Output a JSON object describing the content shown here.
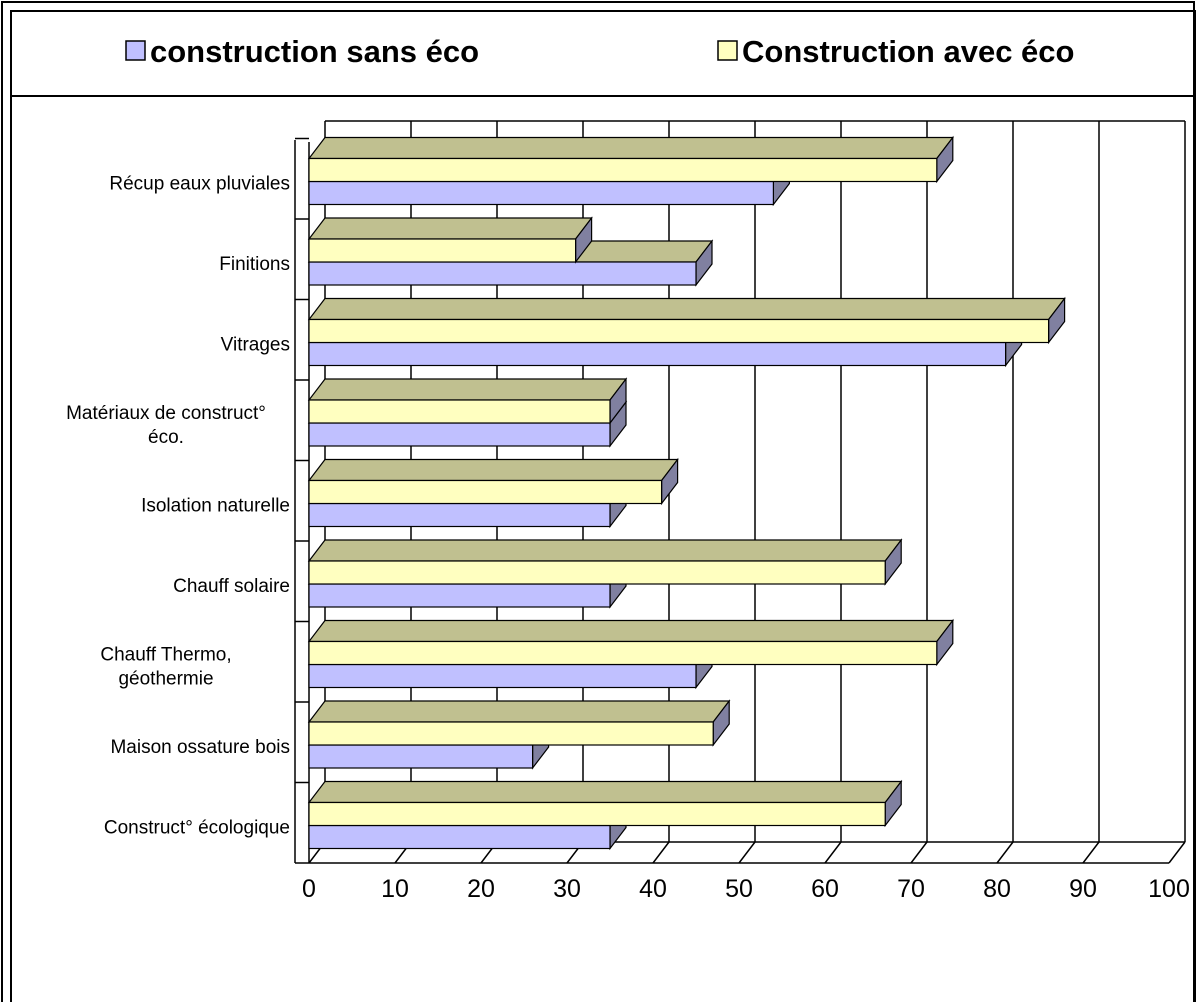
{
  "chart_data": {
    "type": "bar",
    "orientation": "horizontal",
    "style": "3d",
    "categories": [
      "Récup eaux pluviales",
      "Finitions",
      "Vitrages",
      "Matériaux de construct° éco.",
      "Isolation naturelle",
      "Chauff solaire",
      "Chauff Thermo, géothermie",
      "Maison ossature bois",
      "Construct° écologique"
    ],
    "category_lines": [
      [
        "Récup eaux pluviales"
      ],
      [
        "Finitions"
      ],
      [
        "Vitrages"
      ],
      [
        "Matériaux de construct°",
        "éco."
      ],
      [
        "Isolation naturelle"
      ],
      [
        "Chauff solaire"
      ],
      [
        "Chauff Thermo,",
        "géothermie"
      ],
      [
        "Maison ossature bois"
      ],
      [
        "Construct° écologique"
      ]
    ],
    "series": [
      {
        "name": "construction sans éco",
        "color": "#c0c0ff",
        "values": [
          54,
          45,
          81,
          35,
          35,
          35,
          45,
          26,
          35
        ]
      },
      {
        "name": "Construction avec éco",
        "color": "#ffffc0",
        "values": [
          73,
          31,
          86,
          35,
          41,
          67,
          73,
          47,
          67
        ]
      }
    ],
    "xlim": [
      0,
      100
    ],
    "xticks": [
      0,
      10,
      20,
      30,
      40,
      50,
      60,
      70,
      80,
      90,
      100
    ],
    "grid": true,
    "legend": "top"
  }
}
